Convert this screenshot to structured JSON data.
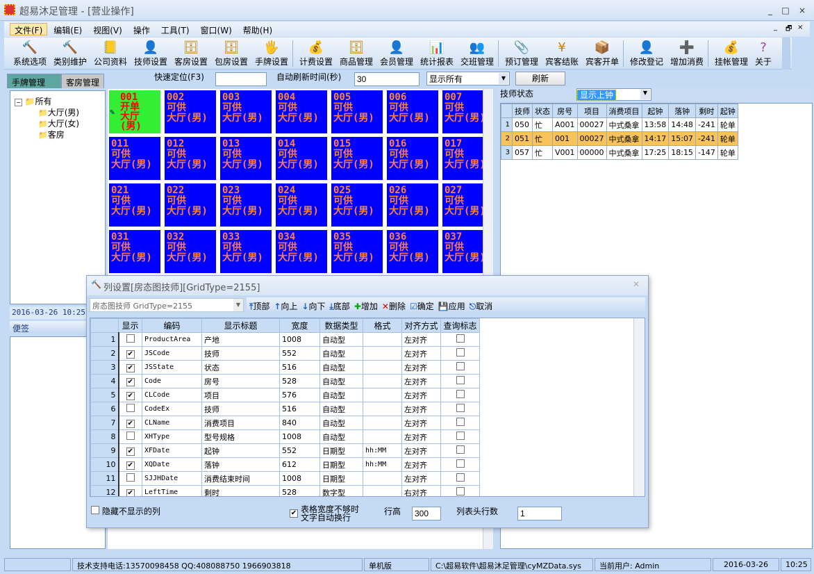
{
  "window": {
    "title": "超易沐足管理 - [营业操作]",
    "app_icon": "app-logo-icon",
    "controls": [
      "_",
      "□",
      "×"
    ]
  },
  "menu": [
    "文件(F)",
    "编辑(E)",
    "视图(V)",
    "操作",
    "工具(T)",
    "窗口(W)",
    "帮助(H)"
  ],
  "mdi_controls": [
    "_",
    "🗗",
    "×"
  ],
  "toolbar": [
    {
      "label": "系统选项",
      "icon": "hammer-icon",
      "glyph": "🔨"
    },
    {
      "label": "类别维护",
      "icon": "hammer-icon",
      "glyph": "🔨"
    },
    {
      "label": "公司资料",
      "icon": "book-icon",
      "glyph": "📒"
    },
    {
      "label": "技师设置",
      "icon": "person-icon",
      "glyph": "👤"
    },
    {
      "label": "客房设置",
      "icon": "room-icon",
      "glyph": "🗄"
    },
    {
      "label": "包房设置",
      "icon": "room-icon",
      "glyph": "🗄"
    },
    {
      "label": "手牌设置",
      "icon": "card-icon",
      "glyph": "🖐"
    },
    {
      "label": "计费设置",
      "icon": "money-icon",
      "glyph": "💰"
    },
    {
      "label": "商品管理",
      "icon": "goods-icon",
      "glyph": "🗄"
    },
    {
      "label": "会员管理",
      "icon": "member-icon",
      "glyph": "👤"
    },
    {
      "label": "统计报表",
      "icon": "chart-icon",
      "glyph": "📊"
    },
    {
      "label": "交班管理",
      "icon": "shift-icon",
      "glyph": "👥"
    },
    {
      "label": "预订管理",
      "icon": "stapler-icon",
      "glyph": "📎"
    },
    {
      "label": "宾客结账",
      "icon": "yen-coin-icon",
      "glyph": "¥"
    },
    {
      "label": "宾客开单",
      "icon": "box-icon",
      "glyph": "📦"
    },
    {
      "label": "修改登记",
      "icon": "edit-person-icon",
      "glyph": "👤"
    },
    {
      "label": "增加消费",
      "icon": "add-icon",
      "glyph": "➕"
    },
    {
      "label": "挂帐管理",
      "icon": "money-bag-icon",
      "glyph": "💰"
    },
    {
      "label": "关于",
      "icon": "question-icon",
      "glyph": "?"
    }
  ],
  "tabs": [
    "手牌管理",
    "客房管理"
  ],
  "quick": {
    "locate_label": "快速定位(F3)",
    "locate_value": "",
    "refresh_label": "自动刷新时间(秒)",
    "refresh_value": "30",
    "filter": "显示所有",
    "refresh_button": "刷新"
  },
  "tree": {
    "root": "所有",
    "children": [
      "大厅(男)",
      "大厅(女)",
      "客房"
    ]
  },
  "datetime": "2016-03-26 10:25:2",
  "notes_label": "便签",
  "rooms": [
    {
      "code": "001",
      "state": "开单",
      "area": "大厅(男)",
      "busy": true
    },
    {
      "code": "002",
      "state": "可供",
      "area": "大厅(男)"
    },
    {
      "code": "003",
      "state": "可供",
      "area": "大厅(男)"
    },
    {
      "code": "004",
      "state": "可供",
      "area": "大厅(男)"
    },
    {
      "code": "005",
      "state": "可供",
      "area": "大厅(男)"
    },
    {
      "code": "006",
      "state": "可供",
      "area": "大厅(男)"
    },
    {
      "code": "007",
      "state": "可供",
      "area": "大厅(男)"
    },
    {
      "code": "011",
      "state": "可供",
      "area": "大厅(男)"
    },
    {
      "code": "012",
      "state": "可供",
      "area": "大厅(男)"
    },
    {
      "code": "013",
      "state": "可供",
      "area": "大厅(男)"
    },
    {
      "code": "014",
      "state": "可供",
      "area": "大厅(男)"
    },
    {
      "code": "015",
      "state": "可供",
      "area": "大厅(男)"
    },
    {
      "code": "016",
      "state": "可供",
      "area": "大厅(男)"
    },
    {
      "code": "017",
      "state": "可供",
      "area": "大厅(男)"
    },
    {
      "code": "021",
      "state": "可供",
      "area": "大厅(男)"
    },
    {
      "code": "022",
      "state": "可供",
      "area": "大厅(男)"
    },
    {
      "code": "023",
      "state": "可供",
      "area": "大厅(男)"
    },
    {
      "code": "024",
      "state": "可供",
      "area": "大厅(男)"
    },
    {
      "code": "025",
      "state": "可供",
      "area": "大厅(男)"
    },
    {
      "code": "026",
      "state": "可供",
      "area": "大厅(男)"
    },
    {
      "code": "027",
      "state": "可供",
      "area": "大厅(男)"
    },
    {
      "code": "031",
      "state": "可供",
      "area": "大厅(男)"
    },
    {
      "code": "032",
      "state": "可供",
      "area": "大厅(男)"
    },
    {
      "code": "033",
      "state": "可供",
      "area": "大厅(男)"
    },
    {
      "code": "034",
      "state": "可供",
      "area": "大厅(男)"
    },
    {
      "code": "035",
      "state": "可供",
      "area": "大厅(男)"
    },
    {
      "code": "036",
      "state": "可供",
      "area": "大厅(男)"
    },
    {
      "code": "037",
      "state": "可供",
      "area": "大厅(男)"
    }
  ],
  "tech": {
    "label": "技师状态",
    "filter": "显示上钟",
    "columns": [
      "",
      "技师",
      "状态",
      "房号",
      "项目",
      "消费项目",
      "起钟",
      "落钟",
      "剩时",
      "起钟"
    ],
    "rows": [
      [
        "1",
        "050",
        "忙",
        "A001",
        "00027",
        "中式桑拿",
        "13:58",
        "14:48",
        "-241",
        "轮单"
      ],
      [
        "2",
        "051",
        "忙",
        "001",
        "00027",
        "中式桑拿",
        "14:17",
        "15:07",
        "-241",
        "轮单"
      ],
      [
        "3",
        "057",
        "忙",
        "V001",
        "00000",
        "中式桑拿",
        "17:25",
        "18:15",
        "-147",
        "轮单"
      ]
    ],
    "selected_row": 2
  },
  "dialog": {
    "title": "列设置[房态图技师][GridType=2155]",
    "grid_select": "房态图技师 GridType=2155",
    "buttons": [
      {
        "label": "顶部",
        "icon": "move-top-icon",
        "glyph": "⤒"
      },
      {
        "label": "向上",
        "icon": "move-up-icon",
        "glyph": "↑"
      },
      {
        "label": "向下",
        "icon": "move-down-icon",
        "glyph": "↓"
      },
      {
        "label": "底部",
        "icon": "move-bottom-icon",
        "glyph": "⤓"
      },
      {
        "label": "增加",
        "icon": "add-icon",
        "glyph": "✚"
      },
      {
        "label": "删除",
        "icon": "delete-icon",
        "glyph": "✕"
      },
      {
        "label": "确定",
        "icon": "confirm-icon",
        "glyph": "☑"
      },
      {
        "label": "应用",
        "icon": "save-icon",
        "glyph": "💾"
      },
      {
        "label": "取消",
        "icon": "cancel-icon",
        "glyph": "⎋"
      }
    ],
    "columns": [
      "",
      "显示",
      "编码",
      "显示标题",
      "宽度",
      "数据类型",
      "格式",
      "对齐方式",
      "查询标志"
    ],
    "rows": [
      [
        "1",
        false,
        "ProductArea",
        "产地",
        "1008",
        "自动型",
        "",
        "左对齐",
        false
      ],
      [
        "2",
        true,
        "JSCode",
        "技师",
        "552",
        "自动型",
        "",
        "左对齐",
        false
      ],
      [
        "3",
        true,
        "JSState",
        "状态",
        "516",
        "自动型",
        "",
        "左对齐",
        false
      ],
      [
        "4",
        true,
        "Code",
        "房号",
        "528",
        "自动型",
        "",
        "左对齐",
        false
      ],
      [
        "5",
        true,
        "CLCode",
        "项目",
        "576",
        "自动型",
        "",
        "左对齐",
        false
      ],
      [
        "6",
        false,
        "CodeEx",
        "技师",
        "516",
        "自动型",
        "",
        "左对齐",
        false
      ],
      [
        "7",
        true,
        "CLName",
        "消费项目",
        "840",
        "自动型",
        "",
        "左对齐",
        false
      ],
      [
        "8",
        false,
        "XHType",
        "型号规格",
        "1008",
        "自动型",
        "",
        "左对齐",
        false
      ],
      [
        "9",
        true,
        "XFDate",
        "起钟",
        "552",
        "日期型",
        "hh:MM",
        "左对齐",
        false
      ],
      [
        "10",
        true,
        "XQDate",
        "落钟",
        "612",
        "日期型",
        "hh:MM",
        "左对齐",
        false
      ],
      [
        "11",
        false,
        "SJJHDate",
        "消费结束时间",
        "1008",
        "日期型",
        "",
        "左对齐",
        false
      ],
      [
        "12",
        true,
        "LeftTime",
        "剩时",
        "528",
        "数字型",
        "",
        "右对齐",
        false
      ]
    ],
    "hide_label": "隐藏不显示的列",
    "hide_checked": false,
    "wrap_label1": "表格宽度不够时",
    "wrap_label2": "文字自动换行",
    "wrap_checked": true,
    "row_height_label": "行高",
    "row_height": "300",
    "header_rows_label": "列表头行数",
    "header_rows": "1"
  },
  "statusbar": [
    "",
    "技术支持电话:13570098458 QQ:408088750 1966903818",
    "单机版",
    "C:\\超易软件\\超易沐足管理\\cyMZData.sys",
    "当前用户: Admin",
    "2016-03-26",
    "10:25"
  ]
}
